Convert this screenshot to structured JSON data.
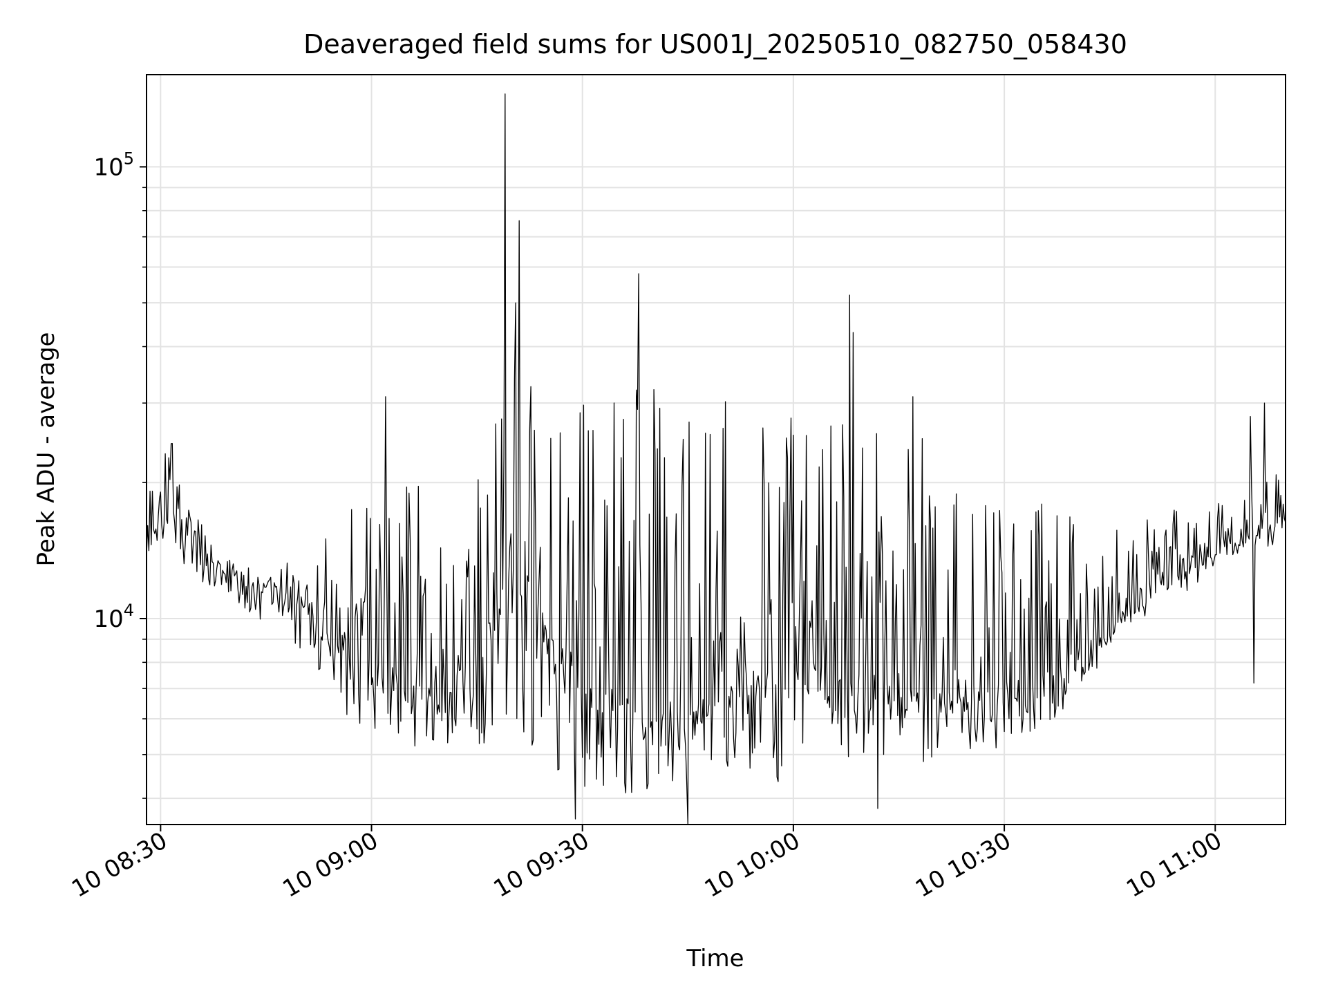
{
  "chart_data": {
    "type": "line",
    "title": "Deaveraged field sums for US001J_20250510_082750_058430",
    "xlabel": "Time",
    "ylabel": "Peak ADU - average",
    "yscale": "log",
    "ylim": [
      3500,
      160000
    ],
    "xlim": [
      "2025-05-10 08:28:00",
      "2025-05-10 11:10:00"
    ],
    "grid": true,
    "line_color": "#000000",
    "x_ticks": [
      {
        "time": "2025-05-10 08:30:00",
        "label": "10 08:30"
      },
      {
        "time": "2025-05-10 09:00:00",
        "label": "10 09:00"
      },
      {
        "time": "2025-05-10 09:30:00",
        "label": "10 09:30"
      },
      {
        "time": "2025-05-10 10:00:00",
        "label": "10 10:00"
      },
      {
        "time": "2025-05-10 10:30:00",
        "label": "10 10:30"
      },
      {
        "time": "2025-05-10 11:00:00",
        "label": "10 11:00"
      }
    ],
    "y_major_ticks": [
      {
        "value": 10000,
        "base": "10",
        "exp": "4"
      },
      {
        "value": 100000,
        "base": "10",
        "exp": "5"
      }
    ],
    "series": [
      {
        "x": [
          "2025-05-10 08:28:00",
          "2025-05-10 08:30:00",
          "2025-05-10 08:32:00",
          "2025-05-10 08:34:00",
          "2025-05-10 08:36:00",
          "2025-05-10 08:38:00",
          "2025-05-10 08:40:00",
          "2025-05-10 08:42:00",
          "2025-05-10 08:44:00",
          "2025-05-10 08:46:00",
          "2025-05-10 08:48:00",
          "2025-05-10 08:50:00",
          "2025-05-10 08:52:00",
          "2025-05-10 08:54:00",
          "2025-05-10 08:56:00",
          "2025-05-10 08:58:00",
          "2025-05-10 09:00:00",
          "2025-05-10 09:02:00",
          "2025-05-10 09:04:00",
          "2025-05-10 09:06:00",
          "2025-05-10 09:08:00",
          "2025-05-10 09:10:00",
          "2025-05-10 09:12:00",
          "2025-05-10 09:14:00",
          "2025-05-10 09:16:00",
          "2025-05-10 09:18:00",
          "2025-05-10 09:20:00",
          "2025-05-10 09:22:00",
          "2025-05-10 09:24:00",
          "2025-05-10 09:26:00",
          "2025-05-10 09:28:00",
          "2025-05-10 09:30:00",
          "2025-05-10 09:32:00",
          "2025-05-10 09:34:00",
          "2025-05-10 09:36:00",
          "2025-05-10 09:38:00",
          "2025-05-10 09:40:00",
          "2025-05-10 09:42:00",
          "2025-05-10 09:44:00",
          "2025-05-10 09:46:00",
          "2025-05-10 09:48:00",
          "2025-05-10 09:50:00",
          "2025-05-10 09:52:00",
          "2025-05-10 09:54:00",
          "2025-05-10 09:56:00",
          "2025-05-10 09:58:00",
          "2025-05-10 10:00:00",
          "2025-05-10 10:02:00",
          "2025-05-10 10:04:00",
          "2025-05-10 10:06:00",
          "2025-05-10 10:08:00",
          "2025-05-10 10:10:00",
          "2025-05-10 10:12:00",
          "2025-05-10 10:14:00",
          "2025-05-10 10:16:00",
          "2025-05-10 10:18:00",
          "2025-05-10 10:20:00",
          "2025-05-10 10:22:00",
          "2025-05-10 10:24:00",
          "2025-05-10 10:26:00",
          "2025-05-10 10:28:00",
          "2025-05-10 10:30:00",
          "2025-05-10 10:32:00",
          "2025-05-10 10:34:00",
          "2025-05-10 10:36:00",
          "2025-05-10 10:38:00",
          "2025-05-10 10:40:00",
          "2025-05-10 10:42:00",
          "2025-05-10 10:44:00",
          "2025-05-10 10:46:00",
          "2025-05-10 10:48:00",
          "2025-05-10 10:50:00",
          "2025-05-10 10:52:00",
          "2025-05-10 10:54:00",
          "2025-05-10 10:56:00",
          "2025-05-10 10:58:00",
          "2025-05-10 11:00:00",
          "2025-05-10 11:02:00",
          "2025-05-10 11:04:00",
          "2025-05-10 11:06:00",
          "2025-05-10 11:08:00",
          "2025-05-10 11:10:00"
        ],
        "y": [
          15000,
          17000,
          19000,
          15500,
          14000,
          13000,
          12500,
          12000,
          11800,
          11600,
          11500,
          10500,
          9500,
          9000,
          8500,
          8200,
          7800,
          7500,
          7200,
          7000,
          6800,
          6600,
          6500,
          6400,
          8000,
          11000,
          13000,
          12000,
          10000,
          9000,
          8000,
          7500,
          7000,
          6500,
          6200,
          6000,
          5800,
          5600,
          5500,
          6000,
          6500,
          7000,
          7200,
          7500,
          7300,
          7000,
          7200,
          7500,
          7300,
          7100,
          7000,
          6900,
          6800,
          6900,
          7000,
          7100,
          6900,
          6800,
          6700,
          6600,
          6500,
          6600,
          6700,
          6900,
          7100,
          7400,
          7800,
          8200,
          8800,
          9600,
          10500,
          11200,
          11800,
          12300,
          12800,
          13400,
          14000,
          14500,
          15000,
          15500,
          16000,
          16500
        ],
        "upper": [
          19000,
          22000,
          26000,
          18000,
          16000,
          14000,
          13500,
          12500,
          12000,
          12500,
          14000,
          12500,
          13000,
          16000,
          17000,
          19000,
          22000,
          21000,
          20000,
          20000,
          19000,
          15000,
          16000,
          25000,
          28000,
          33000,
          36000,
          36000,
          34000,
          33000,
          31000,
          30000,
          32000,
          34000,
          35000,
          34000,
          36000,
          37000,
          36000,
          35000,
          34000,
          33000,
          35000,
          37000,
          36000,
          34000,
          31000,
          30000,
          30000,
          29000,
          28000,
          27000,
          26000,
          27000,
          28000,
          28000,
          27000,
          26000,
          25000,
          24000,
          23000,
          22000,
          21000,
          20000,
          19000,
          18000,
          17500,
          17000,
          16500,
          16000,
          16000,
          17000,
          17500,
          18000,
          18000,
          18000,
          18500,
          19000,
          19500,
          20000,
          21000,
          22000
        ],
        "lower": [
          13000,
          13500,
          13000,
          12500,
          11800,
          11500,
          11000,
          10500,
          10000,
          9500,
          9000,
          8500,
          7800,
          7000,
          6000,
          5800,
          5500,
          5300,
          5200,
          5000,
          5000,
          5100,
          5000,
          5100,
          5000,
          6000,
          5500,
          5200,
          5000,
          4500,
          4300,
          4200,
          4200,
          4100,
          4000,
          4000,
          4100,
          4100,
          4200,
          4200,
          4300,
          4300,
          4400,
          4500,
          4400,
          4300,
          4400,
          4500,
          4500,
          4600,
          4500,
          4500,
          4600,
          4700,
          4700,
          4800,
          4800,
          4900,
          4900,
          5000,
          5100,
          5200,
          5400,
          5600,
          5800,
          6200,
          6800,
          7600,
          8400,
          9200,
          9800,
          10500,
          11000,
          11500,
          12000,
          12500,
          13000,
          13500,
          14000,
          14500,
          15000,
          15000
        ],
        "spikes": [
          {
            "time": "2025-05-10 09:19:00",
            "value": 145000
          },
          {
            "time": "2025-05-10 09:21:00",
            "value": 76000
          },
          {
            "time": "2025-05-10 09:20:30",
            "value": 50000
          },
          {
            "time": "2025-05-10 09:38:00",
            "value": 58000
          },
          {
            "time": "2025-05-10 10:08:00",
            "value": 52000
          },
          {
            "time": "2025-05-10 10:08:30",
            "value": 43000
          },
          {
            "time": "2025-05-10 09:02:00",
            "value": 31000
          },
          {
            "time": "2025-05-10 10:17:00",
            "value": 31000
          },
          {
            "time": "2025-05-10 11:07:00",
            "value": 30000
          },
          {
            "time": "2025-05-10 11:05:00",
            "value": 28000
          },
          {
            "time": "2025-05-10 09:45:00",
            "value": 3500
          },
          {
            "time": "2025-05-10 09:29:00",
            "value": 3600
          },
          {
            "time": "2025-05-10 10:12:00",
            "value": 3800
          },
          {
            "time": "2025-05-10 11:05:30",
            "value": 7200
          }
        ]
      }
    ]
  }
}
